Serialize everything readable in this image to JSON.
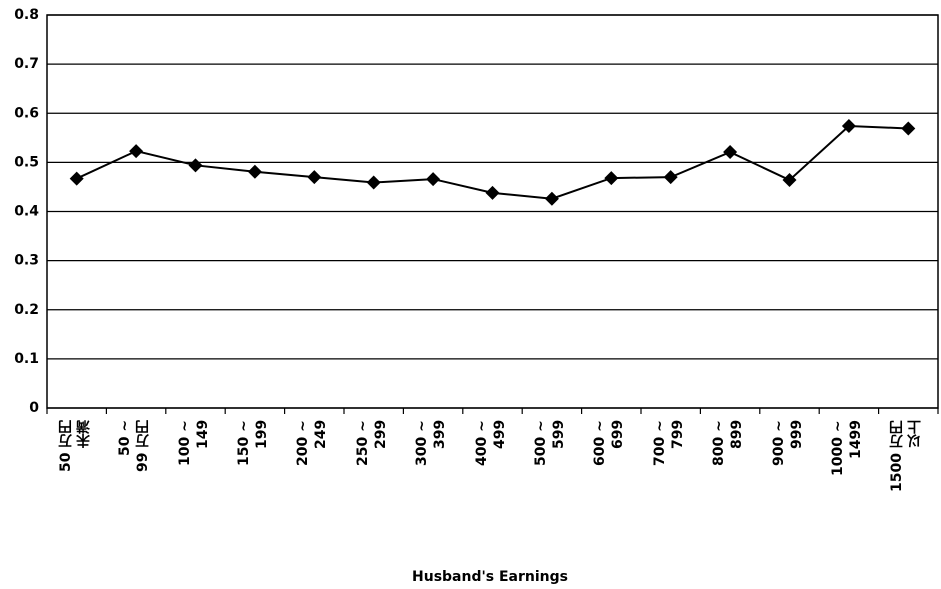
{
  "chart_data": {
    "type": "line",
    "x_label": "Husband's Earnings",
    "categories": [
      "50 万円\n未満",
      "50 ~\n99 万円",
      "100 ~\n149",
      "150 ~\n199",
      "200 ~\n249",
      "250 ~\n299",
      "300 ~\n399",
      "400 ~\n499",
      "500 ~\n599",
      "600 ~\n699",
      "700 ~\n799",
      "800 ~\n899",
      "900 ~\n999",
      "1000 ~\n1499",
      "1500 万円\n以上"
    ],
    "values": [
      0.467,
      0.523,
      0.494,
      0.481,
      0.47,
      0.459,
      0.466,
      0.438,
      0.426,
      0.468,
      0.47,
      0.521,
      0.464,
      0.574,
      0.569
    ],
    "color": "#000000",
    "ylim": [
      0,
      0.8
    ],
    "yticks": [
      0,
      0.1,
      0.2,
      0.3,
      0.4,
      0.5,
      0.6,
      0.7,
      0.8
    ],
    "grid": true
  }
}
